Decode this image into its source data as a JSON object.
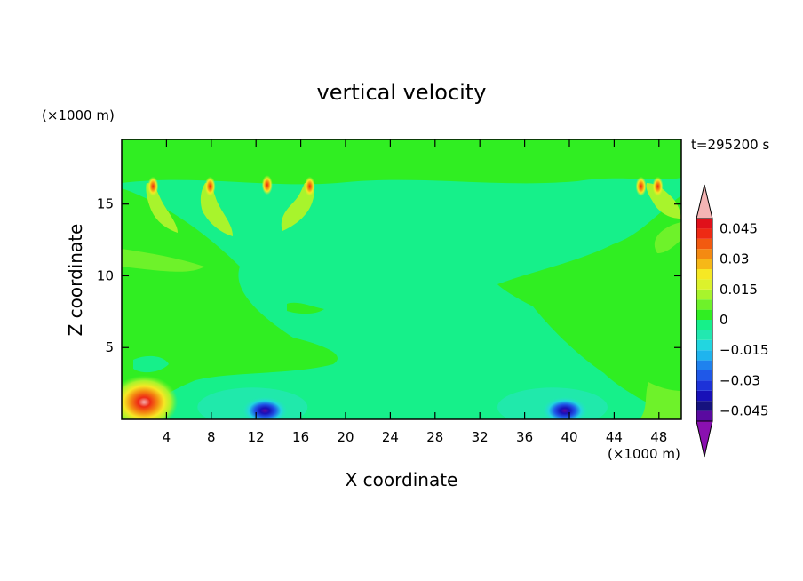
{
  "chart_data": {
    "type": "heatmap",
    "title": "vertical velocity",
    "xlabel": "X coordinate",
    "ylabel": "Z coordinate",
    "x_unit": "(×1000 m)",
    "y_unit": "(×1000 m)",
    "time_label": "t=295200 s",
    "xlim": [
      0,
      50
    ],
    "ylim": [
      0,
      19.5
    ],
    "x_ticks": [
      4,
      8,
      12,
      16,
      20,
      24,
      28,
      32,
      36,
      40,
      44,
      48
    ],
    "y_ticks": [
      5,
      10,
      15
    ],
    "colorbar": {
      "levels": [
        -0.05,
        -0.045,
        -0.04,
        -0.035,
        -0.03,
        -0.025,
        -0.02,
        -0.015,
        -0.01,
        -0.005,
        0,
        0.005,
        0.01,
        0.015,
        0.02,
        0.025,
        0.03,
        0.035,
        0.04,
        0.045,
        0.05
      ],
      "colors": [
        "#5a0aa0",
        "#16127e",
        "#1810b8",
        "#1d32d8",
        "#1f58e8",
        "#1f82ee",
        "#1fb4ee",
        "#22d6e0",
        "#22e8b0",
        "#16f08a",
        "#30ee22",
        "#6ef22a",
        "#a8f42c",
        "#dcf22c",
        "#f6e824",
        "#f6b818",
        "#f48a12",
        "#f25a10",
        "#ee2a14",
        "#e0101a"
      ],
      "under_color": "#8a10b0",
      "over_color": "#f4b4b4",
      "tick_labels": [
        "0.045",
        "0.03",
        "0.015",
        "0",
        "−0.015",
        "−0.03",
        "−0.045"
      ],
      "tick_values": [
        0.045,
        0.03,
        0.015,
        0,
        -0.015,
        -0.03,
        -0.045
      ]
    },
    "features": [
      {
        "kind": "updraft",
        "x": 2.0,
        "z": 1.2,
        "peak": 0.05
      },
      {
        "kind": "downdraft",
        "x": 12.8,
        "z": 0.6,
        "peak": -0.045
      },
      {
        "kind": "downdraft",
        "x": 39.6,
        "z": 0.6,
        "peak": -0.045
      },
      {
        "kind": "plume-top",
        "x": 2.8,
        "z": 16.6,
        "peak": 0.045
      },
      {
        "kind": "plume-top",
        "x": 7.9,
        "z": 16.6,
        "peak": 0.04
      },
      {
        "kind": "plume-top",
        "x": 13.0,
        "z": 16.7,
        "peak": 0.04
      },
      {
        "kind": "plume-top",
        "x": 16.8,
        "z": 16.6,
        "peak": 0.045
      },
      {
        "kind": "plume-top",
        "x": 46.4,
        "z": 16.6,
        "peak": 0.04
      },
      {
        "kind": "plume-top",
        "x": 47.9,
        "z": 16.6,
        "peak": 0.04
      }
    ]
  }
}
